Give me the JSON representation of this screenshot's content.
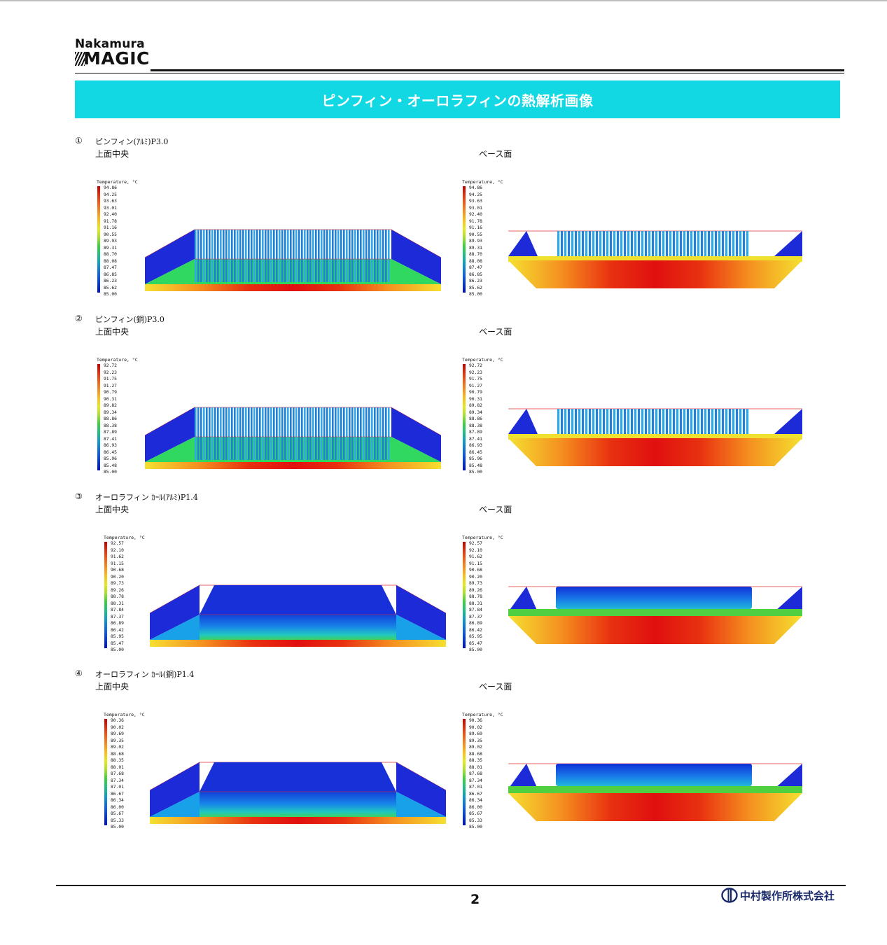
{
  "header": {
    "logo_line1": "Nakamura",
    "logo_line2": "MAGIC",
    "banner_title": "ピンフィン・オーロラフィンの熱解析画像",
    "banner_color": "#12d8e4"
  },
  "labels": {
    "top_center": "上面中央",
    "base_face": "ベース面",
    "legend_title": "Temperature, °C"
  },
  "sections": [
    {
      "number": "①",
      "title": "ピンフィン(ｱﾙﾐ)P3.0",
      "fin_type": "pin",
      "legend_ticks": [
        "94.86",
        "94.25",
        "93.63",
        "93.01",
        "92.40",
        "91.78",
        "91.16",
        "90.55",
        "89.93",
        "89.31",
        "88.70",
        "88.08",
        "87.47",
        "86.85",
        "86.23",
        "85.62",
        "85.00"
      ],
      "legend_ticks_base": [
        "94.86",
        "94.25",
        "93.63",
        "93.01",
        "92.40",
        "91.78",
        "91.16",
        "90.55",
        "89.93",
        "89.31",
        "88.70",
        "88.08",
        "87.47",
        "86.85",
        "86.23",
        "85.62",
        "85.00"
      ]
    },
    {
      "number": "②",
      "title": "ピンフィン(銅)P3.0",
      "fin_type": "pin",
      "legend_ticks": [
        "92.72",
        "92.23",
        "91.75",
        "91.27",
        "90.79",
        "90.31",
        "89.82",
        "89.34",
        "88.86",
        "88.38",
        "87.89",
        "87.41",
        "86.93",
        "86.45",
        "85.96",
        "85.48",
        "85.00"
      ],
      "legend_ticks_base": [
        "92.72",
        "92.23",
        "91.75",
        "91.27",
        "90.79",
        "90.31",
        "89.82",
        "89.34",
        "88.86",
        "88.38",
        "87.89",
        "87.41",
        "86.93",
        "86.45",
        "85.96",
        "85.48",
        "85.00"
      ]
    },
    {
      "number": "③",
      "title": "オーロラフィン ｶｰﾙ(ｱﾙﾐ)P1.4",
      "fin_type": "block",
      "legend_ticks": [
        "92.57",
        "92.10",
        "91.62",
        "91.15",
        "90.68",
        "90.20",
        "89.73",
        "89.26",
        "88.78",
        "88.31",
        "87.84",
        "87.37",
        "86.89",
        "86.42",
        "85.95",
        "85.47",
        "85.00"
      ],
      "legend_ticks_base": [
        "92.57",
        "92.10",
        "91.62",
        "91.15",
        "90.68",
        "90.20",
        "89.73",
        "89.26",
        "88.78",
        "88.31",
        "87.84",
        "87.37",
        "86.89",
        "86.42",
        "85.95",
        "85.47",
        "85.00"
      ]
    },
    {
      "number": "④",
      "title": "オーロラフィン ｶｰﾙ(銅)P1.4",
      "fin_type": "block",
      "legend_ticks": [
        "90.36",
        "90.02",
        "89.69",
        "89.35",
        "89.02",
        "88.68",
        "88.35",
        "88.01",
        "87.68",
        "87.34",
        "87.01",
        "86.67",
        "86.34",
        "86.00",
        "85.67",
        "85.33",
        "85.00"
      ],
      "legend_ticks_base": [
        "90.36",
        "90.02",
        "89.69",
        "89.35",
        "89.02",
        "88.68",
        "88.35",
        "88.01",
        "87.68",
        "87.34",
        "87.01",
        "86.67",
        "86.34",
        "86.00",
        "85.67",
        "85.33",
        "85.00"
      ]
    }
  ],
  "footer": {
    "page_number": "2",
    "company": "中村製作所株式会社"
  }
}
